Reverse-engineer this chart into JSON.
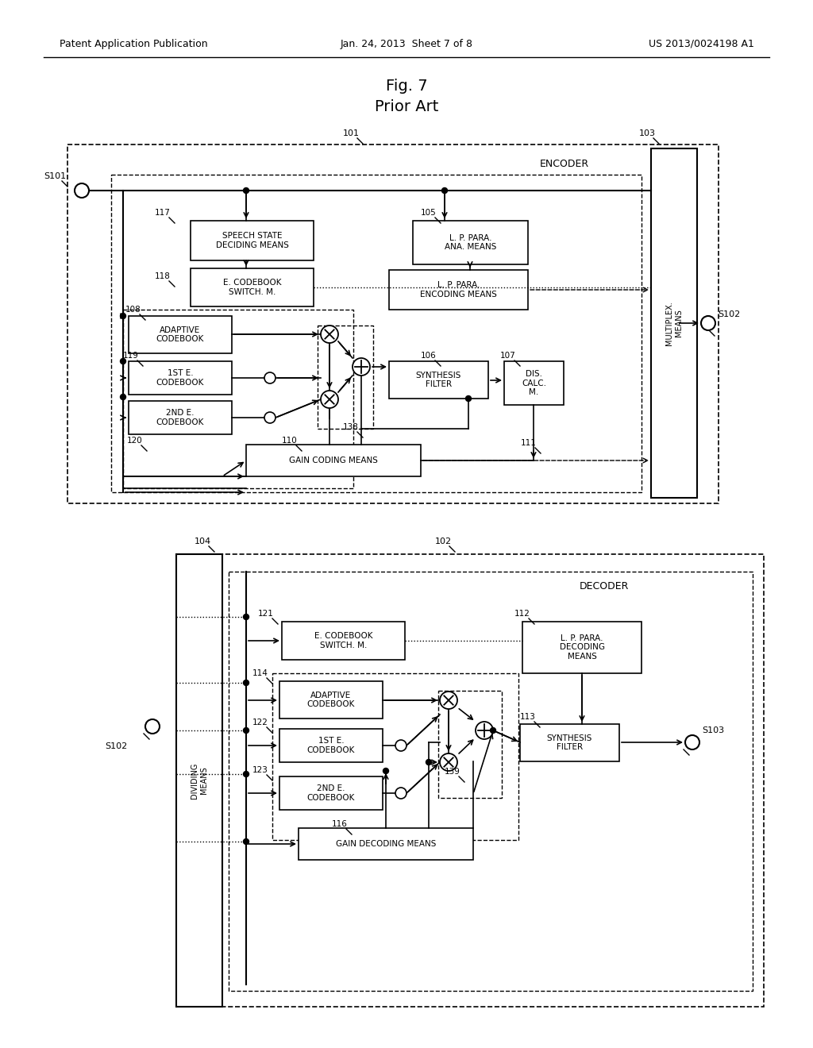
{
  "title": "Fig. 7",
  "subtitle": "Prior Art",
  "header_left": "Patent Application Publication",
  "header_center": "Jan. 24, 2013  Sheet 7 of 8",
  "header_right": "US 2013/0024198 A1",
  "bg_color": "#ffffff"
}
